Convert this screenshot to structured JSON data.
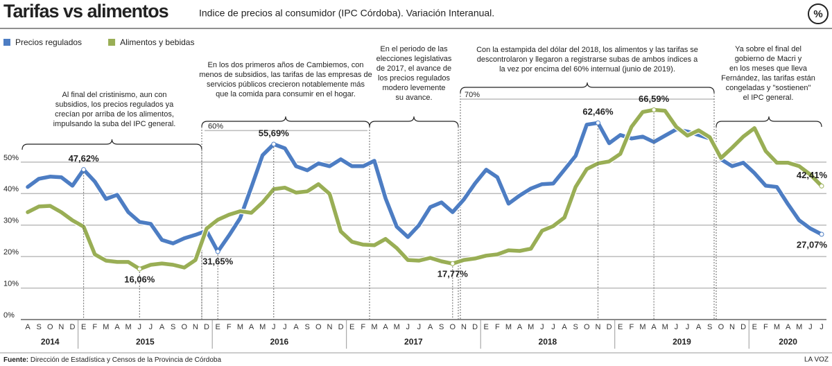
{
  "chart_data": {
    "type": "line",
    "title": "Tarifas vs alimentos",
    "subtitle": "Indice de precios al consumidor (IPC Córdoba). Variación Interanual.",
    "unit_icon": "%",
    "source_label": "Fuente:",
    "source": "Dirección de Estadística y Censos de la Provincia de Córdoba",
    "credit": "LA VOZ",
    "categories": [
      "A",
      "S",
      "O",
      "N",
      "D",
      "E",
      "F",
      "M",
      "A",
      "M",
      "J",
      "J",
      "A",
      "S",
      "O",
      "N",
      "D",
      "E",
      "F",
      "M",
      "A",
      "M",
      "J",
      "J",
      "A",
      "S",
      "O",
      "N",
      "D",
      "E",
      "F",
      "M",
      "A",
      "M",
      "J",
      "J",
      "A",
      "S",
      "O",
      "N",
      "D",
      "E",
      "F",
      "M",
      "A",
      "M",
      "J",
      "J",
      "A",
      "S",
      "O",
      "N",
      "D",
      "E",
      "F",
      "M",
      "A",
      "M",
      "J",
      "J",
      "A",
      "S",
      "O",
      "N",
      "D",
      "E",
      "F",
      "M",
      "A",
      "M",
      "J",
      "J"
    ],
    "years": [
      "2014",
      "2015",
      "2016",
      "2017",
      "2018",
      "2019",
      "2020"
    ],
    "ylim": [
      0,
      70
    ],
    "yticks": [
      {
        "value": 0,
        "label": "0%"
      },
      {
        "value": 10,
        "label": "10%"
      },
      {
        "value": 20,
        "label": "20%"
      },
      {
        "value": 30,
        "label": "30%"
      },
      {
        "value": 40,
        "label": "40%"
      },
      {
        "value": 50,
        "label": "50%"
      },
      {
        "value": 60,
        "label": "60%"
      },
      {
        "value": 70,
        "label": "70%"
      }
    ],
    "grid": true,
    "legend": "top-left",
    "series": [
      {
        "name": "Precios regulados",
        "color": "#4d7dc3",
        "values": [
          42.1,
          44.7,
          45.4,
          45.2,
          42.5,
          47.62,
          43.8,
          38.3,
          39.6,
          34.1,
          31.0,
          30.4,
          25.3,
          24.2,
          25.8,
          26.9,
          28.2,
          21.6,
          26.7,
          32.2,
          42.0,
          52.2,
          55.69,
          54.4,
          48.7,
          47.4,
          49.6,
          48.7,
          50.9,
          48.7,
          48.7,
          50.4,
          38.5,
          29.5,
          26.2,
          30.0,
          35.7,
          37.2,
          34.1,
          38.1,
          43.2,
          47.6,
          45.2,
          36.8,
          39.4,
          41.6,
          43.0,
          43.2,
          47.6,
          52.0,
          61.9,
          62.46,
          56.0,
          58.6,
          57.5,
          58.1,
          56.4,
          58.4,
          60.4,
          59.7,
          58.6,
          57.5,
          50.9,
          48.7,
          49.8,
          46.5,
          42.5,
          42.1,
          36.6,
          31.5,
          28.9,
          27.07
        ],
        "value_labels": [
          null,
          null,
          null,
          null,
          null,
          "47,62%",
          null,
          null,
          null,
          null,
          null,
          null,
          null,
          null,
          null,
          null,
          null,
          null,
          null,
          null,
          null,
          null,
          "55,69%",
          null,
          null,
          null,
          null,
          null,
          null,
          null,
          null,
          null,
          null,
          null,
          null,
          null,
          null,
          null,
          null,
          null,
          null,
          null,
          null,
          null,
          null,
          null,
          null,
          null,
          null,
          null,
          null,
          "62,46%",
          null,
          null,
          null,
          null,
          null,
          null,
          null,
          null,
          null,
          null,
          null,
          null,
          null,
          null,
          null,
          null,
          null,
          null,
          null,
          "27,07%"
        ]
      },
      {
        "name": "Alimentos y bebidas",
        "color": "#99ae55",
        "values": [
          34.1,
          35.9,
          36.1,
          34.1,
          31.5,
          29.5,
          20.7,
          18.7,
          18.3,
          18.3,
          16.06,
          17.4,
          17.8,
          17.4,
          16.5,
          18.9,
          28.9,
          31.7,
          33.3,
          34.4,
          33.9,
          37.2,
          41.4,
          41.9,
          40.3,
          40.7,
          43.0,
          39.9,
          28.0,
          24.7,
          23.8,
          23.6,
          25.6,
          22.7,
          18.9,
          18.7,
          19.6,
          18.5,
          17.77,
          18.9,
          19.4,
          20.3,
          20.7,
          22.0,
          21.8,
          22.5,
          28.2,
          29.7,
          32.4,
          42.1,
          47.8,
          49.6,
          50.2,
          52.6,
          61.2,
          65.9,
          66.59,
          66.3,
          61.2,
          58.4,
          60.1,
          57.9,
          51.3,
          54.6,
          58.1,
          60.8,
          53.5,
          49.8,
          49.8,
          48.7,
          46.0,
          42.41
        ],
        "value_labels": [
          null,
          null,
          null,
          null,
          null,
          null,
          null,
          null,
          null,
          null,
          "16,06%",
          null,
          null,
          null,
          null,
          null,
          null,
          null,
          null,
          null,
          null,
          null,
          null,
          null,
          null,
          null,
          null,
          null,
          null,
          null,
          null,
          null,
          null,
          null,
          null,
          null,
          null,
          null,
          "17,77%",
          null,
          null,
          null,
          null,
          null,
          null,
          null,
          null,
          null,
          null,
          null,
          null,
          null,
          null,
          null,
          null,
          null,
          "66,59%",
          null,
          null,
          null,
          null,
          null,
          null,
          null,
          null,
          null,
          null,
          null,
          null,
          null,
          null,
          "42,41%"
        ]
      }
    ],
    "point_note": "31,65%",
    "annotations": [
      [
        "Al final del cristinismo, aun con",
        "subsidios, los precios regulados ya",
        "crecían por arriba de los alimentos,",
        "impulsando la suba del IPC general."
      ],
      [
        "En los dos primeros años de Cambiemos, con",
        "menos de subsidios, las tarifas de las empresas de",
        "servicios públicos crecieron notablemente más",
        "que la comida para consumir en el hogar."
      ],
      [
        "En el periodo de las",
        "elecciones legislativas",
        "de 2017, el avance de",
        "los precios regulados",
        "modero levemente",
        "su avance."
      ],
      [
        "Con la estampida del dólar del 2018, los alimentos y las tarifas se",
        "descontrolaron y llegaron a registrarse subas de ambos índices a",
        "la vez por encima del 60% internual (junio de 2019)."
      ],
      [
        "Ya sobre el final del",
        "gobierno de Macri y",
        "en los meses que lleva",
        "Fernández, las tarifas están",
        "congeladas y \"sostienen\"",
        "el IPC general."
      ]
    ]
  }
}
